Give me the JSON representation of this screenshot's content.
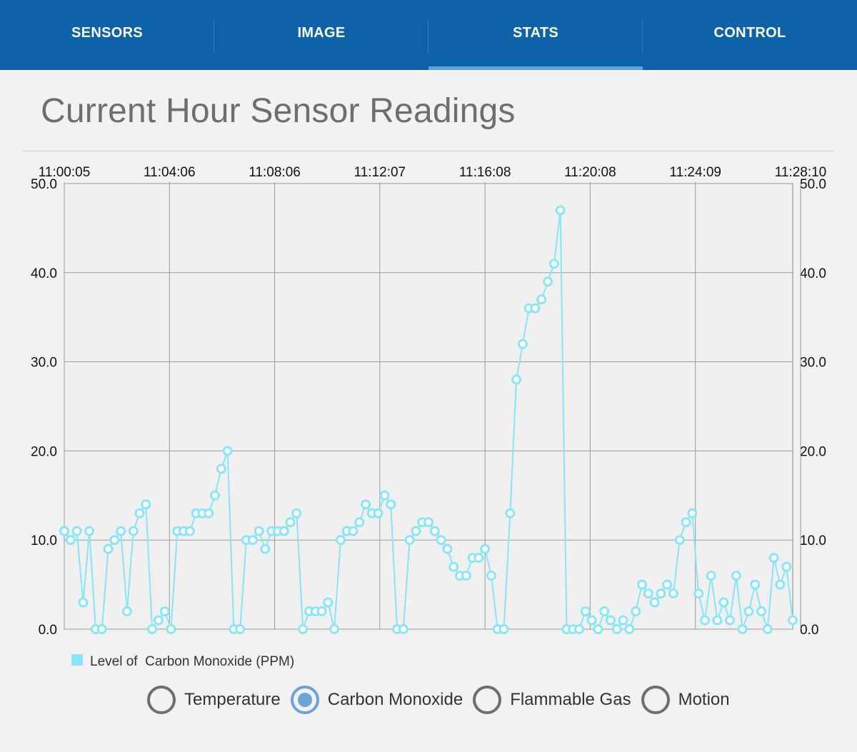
{
  "tabs": [
    {
      "label": "SENSORS",
      "active": false
    },
    {
      "label": "IMAGE",
      "active": false
    },
    {
      "label": "STATS",
      "active": true
    },
    {
      "label": "CONTROL",
      "active": false
    }
  ],
  "page_title": "Current Hour Sensor Readings",
  "legend": {
    "label": "Level of  Carbon Monoxide (PPM)",
    "color": "#88e6f8"
  },
  "radio_options": [
    {
      "label": "Temperature",
      "checked": false
    },
    {
      "label": "Carbon Monoxide",
      "checked": true
    },
    {
      "label": "Flammable Gas",
      "checked": false
    },
    {
      "label": "Motion",
      "checked": false
    }
  ],
  "colors": {
    "tabbar": "#0d62a8",
    "series": "#88e6f8",
    "radio_accent": "#6aa4d8"
  },
  "chart_data": {
    "type": "line",
    "title": "",
    "xlabel": "",
    "ylabel": "",
    "ylim": [
      0,
      50
    ],
    "y_ticks": [
      "0.0",
      "10.0",
      "20.0",
      "30.0",
      "40.0",
      "50.0"
    ],
    "x_tick_labels": [
      "11:00:05",
      "11:04:06",
      "11:08:06",
      "11:12:07",
      "11:16:08",
      "11:20:08",
      "11:24:09",
      "11:28:10"
    ],
    "x_axis_position": "top",
    "grid": true,
    "series": [
      {
        "name": "Level of  Carbon Monoxide (PPM)",
        "values": [
          11,
          10,
          11,
          3,
          11,
          0,
          0,
          9,
          10,
          11,
          2,
          11,
          13,
          14,
          0,
          1,
          2,
          0,
          11,
          11,
          11,
          13,
          13,
          13,
          15,
          18,
          20,
          0,
          0,
          10,
          10,
          11,
          9,
          11,
          11,
          11,
          12,
          13,
          0,
          2,
          2,
          2,
          3,
          0,
          10,
          11,
          11,
          12,
          14,
          13,
          13,
          15,
          14,
          0,
          0,
          10,
          11,
          12,
          12,
          11,
          10,
          9,
          7,
          6,
          6,
          8,
          8,
          9,
          6,
          0,
          0,
          13,
          28,
          32,
          36,
          36,
          37,
          39,
          41,
          47,
          0,
          0,
          0,
          2,
          1,
          0,
          2,
          1,
          0,
          1,
          0,
          2,
          5,
          4,
          3,
          4,
          5,
          4,
          10,
          12,
          13,
          4,
          1,
          6,
          1,
          3,
          1,
          6,
          0,
          2,
          5,
          2,
          0,
          8,
          5,
          7,
          1
        ]
      }
    ]
  }
}
